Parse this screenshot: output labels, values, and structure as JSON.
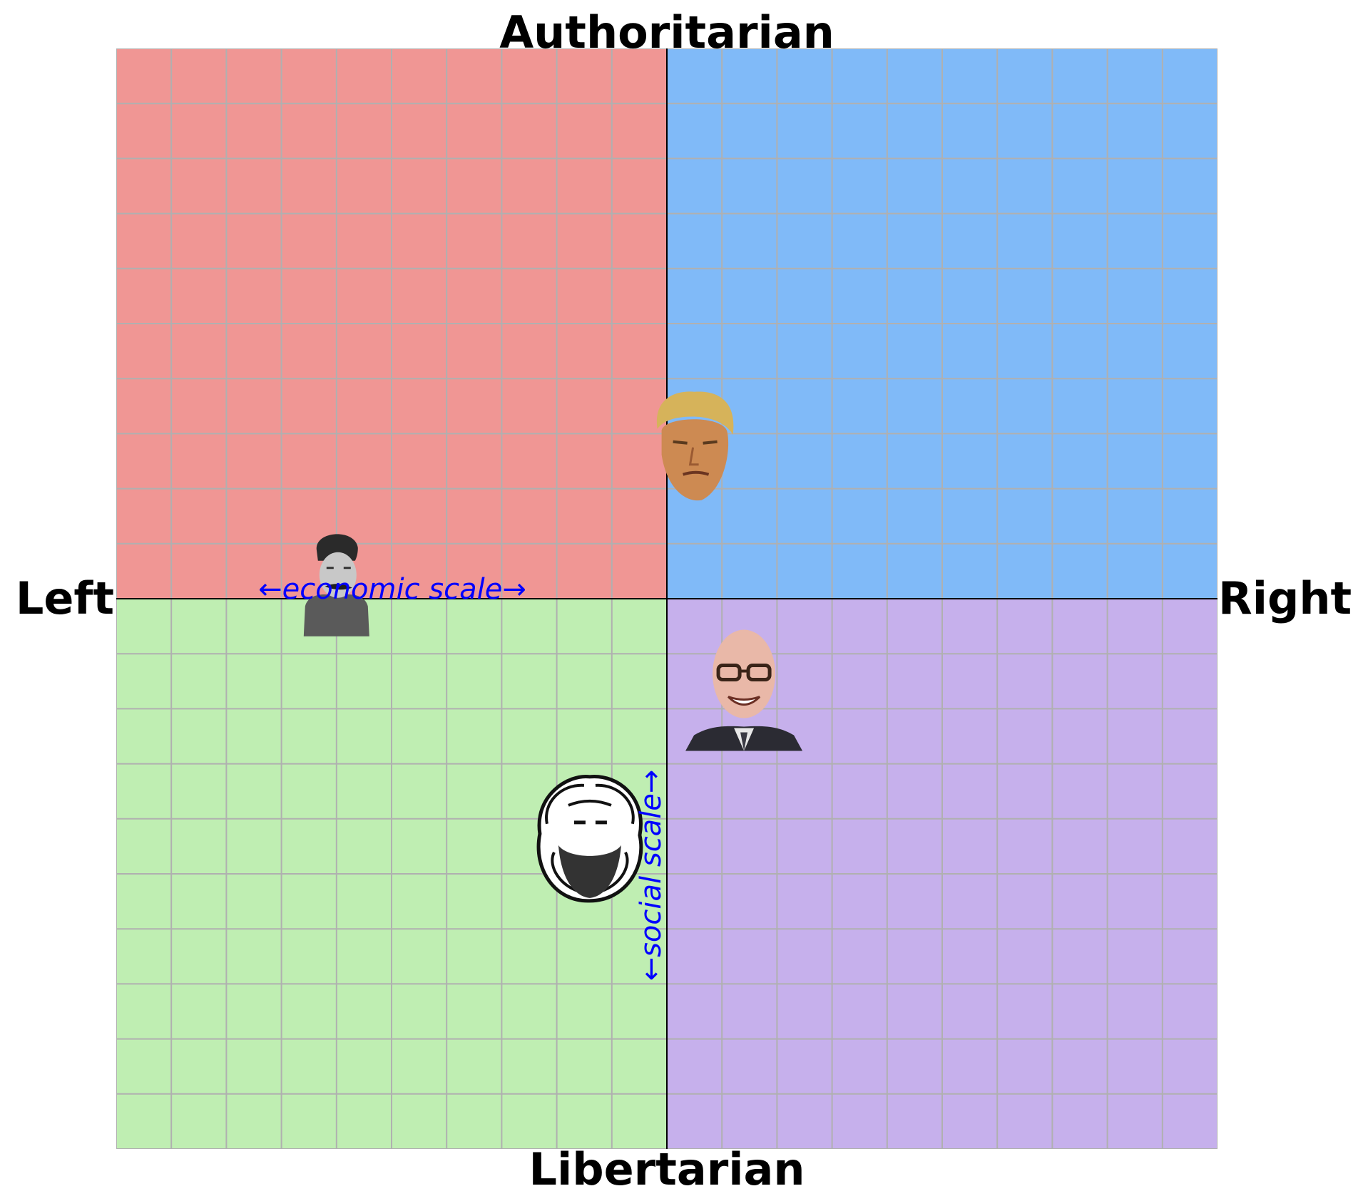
{
  "chart_data": {
    "type": "scatter",
    "title": "",
    "axis_labels": {
      "top": "Authoritarian",
      "bottom": "Libertarian",
      "left": "Left",
      "right": "Right"
    },
    "scale_labels": {
      "economic": "←economic scale→",
      "social": "←social scale→"
    },
    "xlim": [
      -10,
      10
    ],
    "ylim": [
      -10,
      10
    ],
    "grid": true,
    "grid_step": 1,
    "legend": "none",
    "quadrants": [
      {
        "name": "authoritarian-left",
        "color": "#f09694"
      },
      {
        "name": "authoritarian-right",
        "color": "#80baf8"
      },
      {
        "name": "libertarian-left",
        "color": "#bfeeb2"
      },
      {
        "name": "libertarian-right",
        "color": "#c6b0ec"
      }
    ],
    "points": [
      {
        "portrait": "trump",
        "x": 0.5,
        "y": 2.75
      },
      {
        "portrait": "stalin",
        "x": -6.0,
        "y": 0.25
      },
      {
        "portrait": "friedman",
        "x": 1.4,
        "y": -1.6
      },
      {
        "portrait": "marx",
        "x": -1.4,
        "y": -4.35
      }
    ]
  }
}
